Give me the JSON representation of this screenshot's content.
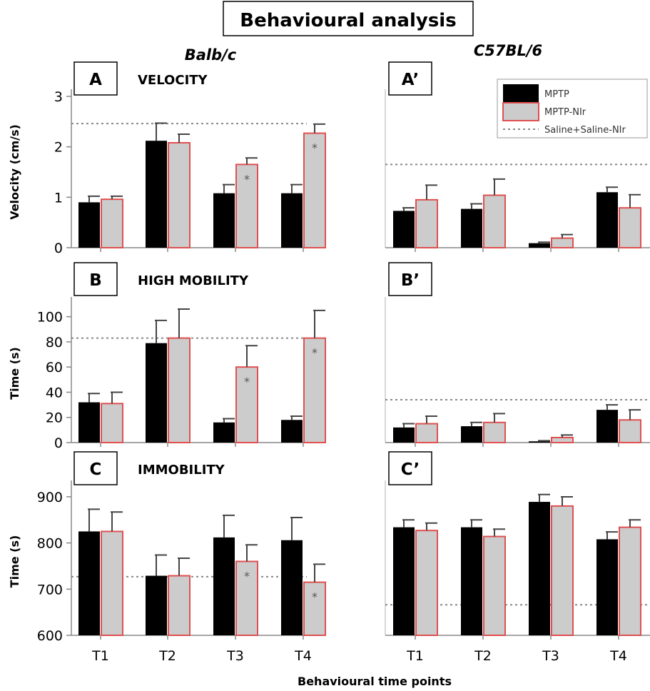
{
  "figure": {
    "title": "Behavioural analysis",
    "xlabel": "Behavioural time points",
    "strain_left": "Balb/c",
    "strain_right": "C57BL/6"
  },
  "legend": {
    "entries": [
      "MPTP",
      "MPTP-NIr",
      "Saline+Saline-NIr"
    ],
    "colors": {
      "MPTP": "#000000",
      "MPTP-NIr": "#cccccc",
      "MPTP-NIr_border": "#e05050",
      "reference": "#999999"
    }
  },
  "chart_data": [
    {
      "type": "bar",
      "panel": "A",
      "heading": "VELOCITY",
      "ylabel": "Velocity (cm/s)",
      "ylim": [
        0,
        3
      ],
      "yticks": [
        "0",
        "1",
        "2",
        "3"
      ],
      "categories": [
        "T1",
        "T2",
        "T3",
        "T4"
      ],
      "series": [
        {
          "name": "MPTP",
          "values": [
            0.9,
            2.12,
            1.08,
            1.08
          ],
          "errors": [
            0.12,
            0.35,
            0.17,
            0.17
          ]
        },
        {
          "name": "MPTP-NIr",
          "values": [
            0.96,
            2.08,
            1.65,
            2.27
          ],
          "errors": [
            0.06,
            0.17,
            0.13,
            0.18
          ]
        }
      ],
      "reference": {
        "name": "Saline+Saline-NIr",
        "value": 2.46
      },
      "significant": [
        false,
        false,
        true,
        true
      ]
    },
    {
      "type": "bar",
      "panel": "A’",
      "heading": "",
      "ylabel": "",
      "ylim": [
        0,
        3
      ],
      "yticks": [],
      "categories": [
        "T1",
        "T2",
        "T3",
        "T4"
      ],
      "series": [
        {
          "name": "MPTP",
          "values": [
            0.73,
            0.77,
            0.09,
            1.1
          ],
          "errors": [
            0.06,
            0.1,
            0.02,
            0.1
          ]
        },
        {
          "name": "MPTP-NIr",
          "values": [
            0.95,
            1.04,
            0.19,
            0.79
          ],
          "errors": [
            0.29,
            0.32,
            0.07,
            0.26
          ]
        }
      ],
      "reference": {
        "name": "Saline+Saline-NIr",
        "value": 1.65
      },
      "significant": [
        false,
        false,
        false,
        false
      ]
    },
    {
      "type": "bar",
      "panel": "B",
      "heading": "HIGH MOBILITY",
      "ylabel": "Time (s)",
      "ylim": [
        0,
        110
      ],
      "yticks": [
        "0",
        "20",
        "40",
        "60",
        "80",
        "100"
      ],
      "categories": [
        "T1",
        "T2",
        "T3",
        "T4"
      ],
      "series": [
        {
          "name": "MPTP",
          "values": [
            32,
            79,
            16,
            18
          ],
          "errors": [
            7,
            18,
            3,
            3
          ]
        },
        {
          "name": "MPTP-NIr",
          "values": [
            31,
            83,
            60,
            83
          ],
          "errors": [
            9,
            23,
            17,
            22
          ]
        }
      ],
      "reference": {
        "name": "Saline+Saline-NIr",
        "value": 83
      },
      "significant": [
        false,
        false,
        true,
        true
      ]
    },
    {
      "type": "bar",
      "panel": "B’",
      "heading": "",
      "ylabel": "",
      "ylim": [
        0,
        110
      ],
      "yticks": [],
      "categories": [
        "T1",
        "T2",
        "T3",
        "T4"
      ],
      "series": [
        {
          "name": "MPTP",
          "values": [
            12,
            13,
            1,
            26
          ],
          "errors": [
            3,
            3,
            0.5,
            4
          ]
        },
        {
          "name": "MPTP-NIr",
          "values": [
            15,
            16,
            4,
            18
          ],
          "errors": [
            6,
            7,
            2,
            8
          ]
        }
      ],
      "reference": {
        "name": "Saline+Saline-NIr",
        "value": 34
      },
      "significant": [
        false,
        false,
        false,
        false
      ]
    },
    {
      "type": "bar",
      "panel": "C",
      "heading": "IMMOBILITY",
      "ylabel": "Time (s)",
      "ylim": [
        600,
        920
      ],
      "yticks": [
        "600",
        "700",
        "800",
        "900"
      ],
      "categories": [
        "T1",
        "T2",
        "T3",
        "T4"
      ],
      "series": [
        {
          "name": "MPTP",
          "values": [
            825,
            729,
            812,
            806
          ],
          "errors": [
            48,
            45,
            48,
            49
          ]
        },
        {
          "name": "MPTP-NIr",
          "values": [
            825,
            729,
            760,
            715
          ],
          "errors": [
            42,
            38,
            36,
            39
          ]
        }
      ],
      "reference": {
        "name": "Saline+Saline-NIr",
        "value": 727
      },
      "significant": [
        false,
        false,
        true,
        true
      ]
    },
    {
      "type": "bar",
      "panel": "C’",
      "heading": "",
      "ylabel": "",
      "ylim": [
        600,
        920
      ],
      "yticks": [],
      "categories": [
        "T1",
        "T2",
        "T3",
        "T4"
      ],
      "series": [
        {
          "name": "MPTP",
          "values": [
            834,
            834,
            889,
            808
          ],
          "errors": [
            16,
            16,
            16,
            16
          ]
        },
        {
          "name": "MPTP-NIr",
          "values": [
            827,
            814,
            880,
            834
          ],
          "errors": [
            16,
            16,
            20,
            16
          ]
        }
      ],
      "reference": {
        "name": "Saline+Saline-NIr",
        "value": 666
      },
      "significant": [
        false,
        false,
        false,
        false
      ]
    }
  ]
}
